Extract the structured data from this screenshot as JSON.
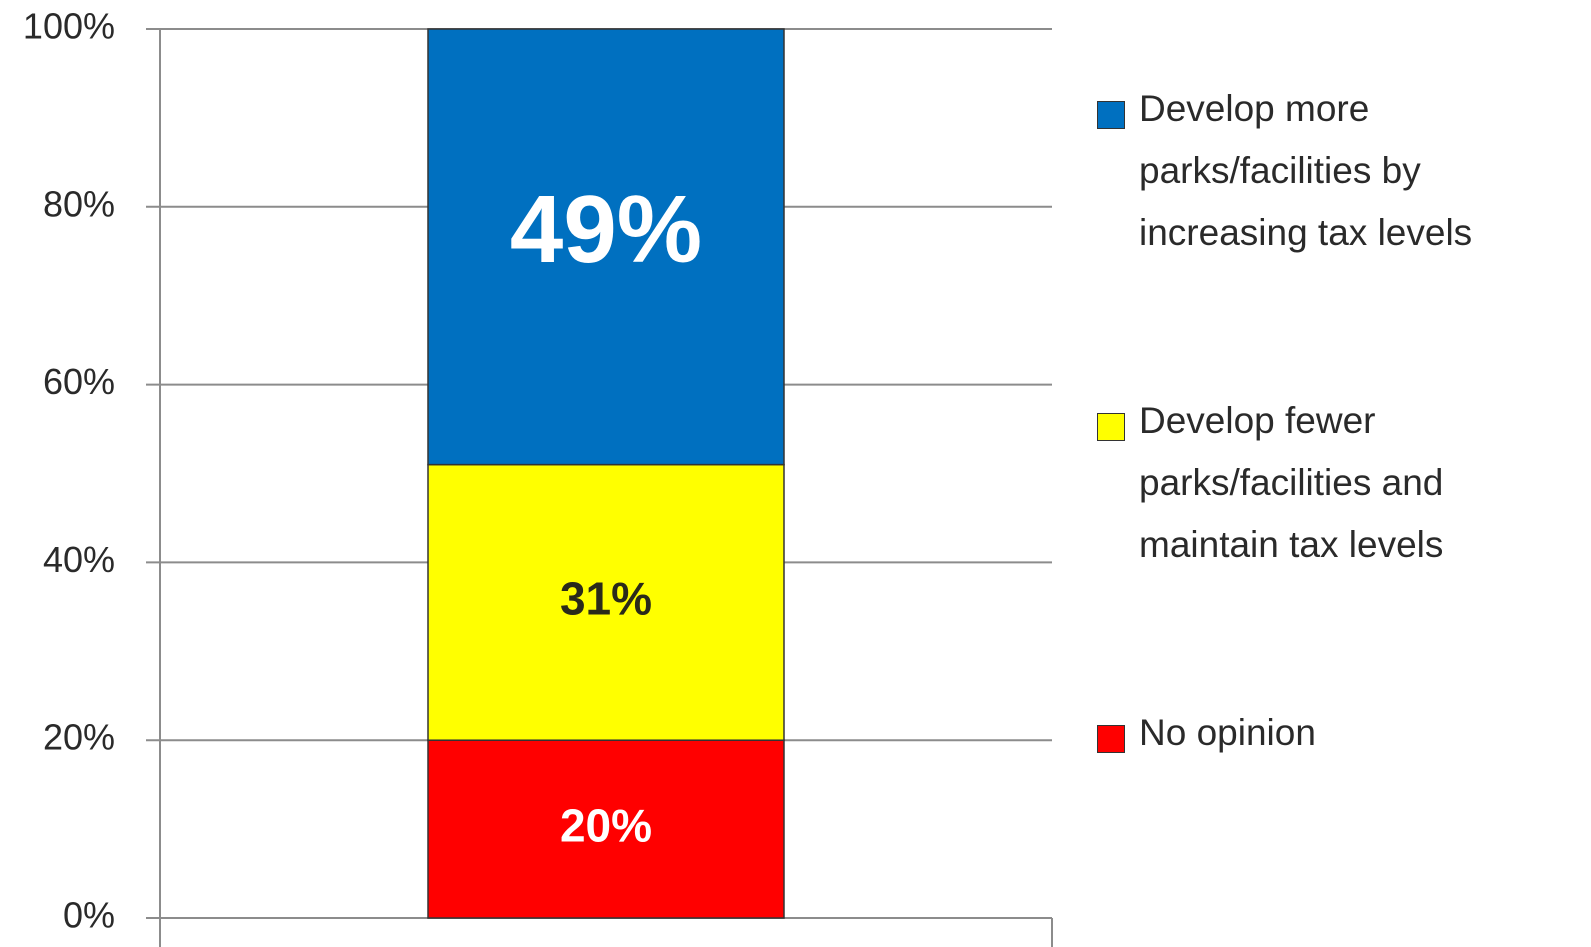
{
  "chart_data": {
    "type": "stacked_bar",
    "series": [
      {
        "name": "No opinion",
        "color": "#ff0000",
        "label_color": "#ffffff",
        "values": [
          20
        ],
        "value_labels": [
          "20%"
        ]
      },
      {
        "name": "Develop fewer parks/facilities and maintain tax levels",
        "color": "#ffff00",
        "label_color": "#2a2a1a",
        "values": [
          31
        ],
        "value_labels": [
          "31%"
        ]
      },
      {
        "name": "Develop more parks/facilities by increasing tax levels",
        "color": "#0070c0",
        "label_color": "#ffffff",
        "values": [
          49
        ],
        "value_labels": [
          "49%"
        ]
      }
    ],
    "ylim": [
      0,
      100
    ],
    "yticks": [
      {
        "value": 0,
        "label": "0%"
      },
      {
        "value": 20,
        "label": "20%"
      },
      {
        "value": 40,
        "label": "40%"
      },
      {
        "value": 60,
        "label": "60%"
      },
      {
        "value": 80,
        "label": "80%"
      },
      {
        "value": 100,
        "label": "100%"
      }
    ],
    "grid": true
  }
}
